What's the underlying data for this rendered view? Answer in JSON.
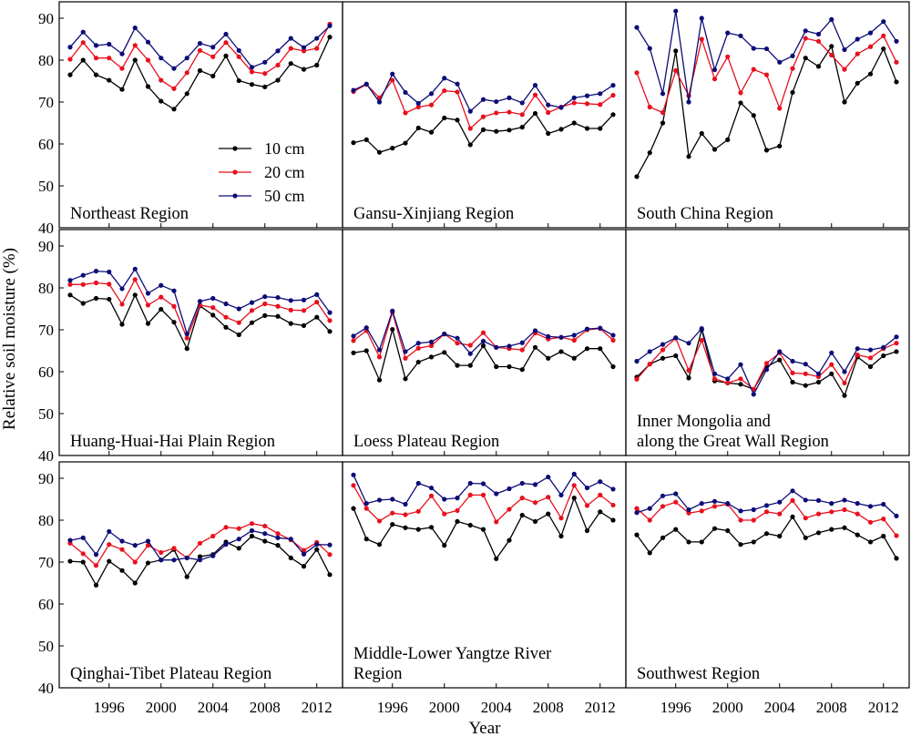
{
  "chart_data": {
    "type": "line",
    "xlabel": "Year",
    "ylabel": "Relative soil moisture (%)",
    "x": [
      1993,
      1994,
      1995,
      1996,
      1997,
      1998,
      1999,
      2000,
      2001,
      2002,
      2003,
      2004,
      2005,
      2006,
      2007,
      2008,
      2009,
      2010,
      2011,
      2012,
      2013
    ],
    "xticks": [
      1996,
      2000,
      2004,
      2008,
      2012
    ],
    "ylim": [
      40,
      95
    ],
    "yticks": [
      40,
      50,
      60,
      70,
      80,
      90
    ],
    "legend": {
      "placement": "inside top panel, Northeast Region",
      "entries": [
        "10 cm",
        "20 cm",
        "50 cm"
      ]
    },
    "series_colors": {
      "10 cm": "#000000",
      "20 cm": "#e8101e",
      "50 cm": "#0c0c78"
    },
    "panels": [
      {
        "title": [
          "Northeast Region"
        ],
        "series": [
          {
            "name": "10 cm",
            "values": [
              76.5,
              80,
              76.5,
              75.2,
              73,
              80,
              73.7,
              70.2,
              68.3,
              72,
              77.5,
              76.2,
              81,
              75.1,
              74.2,
              73.6,
              75.2,
              79.2,
              77.8,
              78.8,
              85.5
            ]
          },
          {
            "name": "20 cm",
            "values": [
              80.2,
              84.2,
              80.5,
              80.5,
              78,
              83.5,
              80,
              75.2,
              73.2,
              77,
              82.3,
              80.8,
              84.2,
              80.8,
              77.2,
              76.8,
              78.8,
              82.8,
              82.2,
              82.8,
              88.6
            ]
          },
          {
            "name": "50 cm",
            "values": [
              83.1,
              86.7,
              83.5,
              83.8,
              81.5,
              87.7,
              84.3,
              80.5,
              78,
              80.5,
              84,
              83.1,
              86.2,
              82.3,
              78.3,
              79.5,
              82.2,
              85.2,
              83,
              85.2,
              88.2
            ]
          }
        ]
      },
      {
        "title": [
          "Gansu-Xinjiang Region"
        ],
        "series": [
          {
            "name": "10 cm",
            "values": [
              60.3,
              61,
              58,
              59,
              60.2,
              63.8,
              62.8,
              66.2,
              65.7,
              59.8,
              63.4,
              63,
              63.3,
              64,
              67.3,
              62.5,
              63.5,
              65,
              63.7,
              63.7,
              67
            ]
          },
          {
            "name": "20 cm",
            "values": [
              72.5,
              74.2,
              71,
              75.2,
              67.4,
              68.8,
              69.3,
              72.7,
              72.4,
              63.7,
              66.5,
              67.4,
              67.6,
              67,
              71.7,
              67.5,
              68.8,
              69.8,
              69.6,
              69.4,
              71.6
            ]
          },
          {
            "name": "50 cm",
            "values": [
              72.8,
              74.3,
              70,
              76.7,
              72.3,
              69.7,
              72,
              75.7,
              74.3,
              67.8,
              70.6,
              70.1,
              71,
              69.8,
              74,
              69.3,
              68.7,
              71,
              71.5,
              72,
              74
            ]
          }
        ]
      },
      {
        "title": [
          "South China Region"
        ],
        "series": [
          {
            "name": "10 cm",
            "values": [
              52.2,
              57.9,
              65,
              82.2,
              57,
              62.5,
              58.7,
              61,
              69.8,
              66.8,
              58.5,
              59.5,
              72.3,
              80.5,
              78.5,
              83.3,
              70,
              74.5,
              76.7,
              82.7,
              74.8
            ]
          },
          {
            "name": "20 cm",
            "values": [
              77,
              68.8,
              67.5,
              77.5,
              71.5,
              85,
              75.5,
              80.8,
              72.2,
              77.8,
              76.5,
              68.5,
              78,
              85.2,
              84.5,
              81.2,
              77.8,
              81.5,
              83.2,
              85.8,
              79.5
            ]
          },
          {
            "name": "50 cm",
            "values": [
              87.8,
              82.8,
              72,
              91.7,
              70,
              90,
              77.7,
              86.5,
              85.8,
              82.8,
              82.7,
              79.5,
              81,
              87,
              86.2,
              89.7,
              82.5,
              85,
              86.5,
              89.2,
              84.5
            ]
          }
        ]
      },
      {
        "title": [
          "Huang-Huai-Hai Plain Region"
        ],
        "series": [
          {
            "name": "10 cm",
            "values": [
              78.3,
              76.3,
              77.5,
              77.3,
              71.3,
              78.3,
              71.5,
              74.9,
              71.8,
              65.5,
              75.7,
              73.5,
              70.6,
              68.8,
              71.7,
              73.4,
              73.2,
              71.5,
              71,
              73,
              69.6
            ]
          },
          {
            "name": "20 cm",
            "values": [
              80.8,
              80.8,
              81.2,
              80.9,
              76.1,
              82,
              75.9,
              77.8,
              75.6,
              68,
              75.9,
              75.3,
              73,
              71.7,
              74.6,
              76.2,
              75.6,
              74.7,
              74.6,
              76.6,
              72.2
            ]
          },
          {
            "name": "50 cm",
            "values": [
              81.8,
              83,
              84,
              83.8,
              79.8,
              84.5,
              78.7,
              80.6,
              79.3,
              69,
              76.8,
              77.5,
              76.2,
              75,
              76.5,
              77.9,
              77.7,
              77,
              77.1,
              78.4,
              74.1
            ]
          }
        ]
      },
      {
        "title": [
          "Loess Plateau Region"
        ],
        "series": [
          {
            "name": "10 cm",
            "values": [
              64.5,
              65,
              58,
              70.1,
              58.3,
              62.3,
              63.5,
              64.6,
              61.5,
              61.5,
              66.2,
              61.2,
              61.2,
              60.5,
              65.8,
              63.2,
              64.8,
              63.2,
              65.5,
              65.5,
              61.2
            ]
          },
          {
            "name": "20 cm",
            "values": [
              67.4,
              69.8,
              63.5,
              74.2,
              63.2,
              65.6,
              66.2,
              69,
              66.8,
              66.3,
              69.3,
              65.8,
              65.5,
              65.2,
              69.2,
              67.8,
              68.2,
              67.5,
              70,
              70.3,
              67.5
            ]
          },
          {
            "name": "50 cm",
            "values": [
              68.5,
              70.5,
              65.2,
              74.5,
              64.8,
              66.8,
              67.1,
              69,
              68,
              64.3,
              67.3,
              65.8,
              66.1,
              66.9,
              69.8,
              68.4,
              68.2,
              68.7,
              70.2,
              70.4,
              68.7
            ]
          }
        ]
      },
      {
        "title": [
          "Inner Mongolia and",
          "along the Great Wall Region"
        ],
        "series": [
          {
            "name": "10 cm",
            "values": [
              58.7,
              61.8,
              63.2,
              63.8,
              58.5,
              70,
              57.8,
              57.3,
              57,
              55.8,
              61.2,
              62.8,
              57.5,
              56.7,
              57.5,
              59.5,
              54.3,
              63.5,
              61.2,
              63.8,
              64.8
            ]
          },
          {
            "name": "20 cm",
            "values": [
              58.2,
              61.8,
              65.2,
              68,
              60.3,
              67.5,
              58.3,
              57.3,
              58.3,
              55.8,
              62,
              64.5,
              59.7,
              59.5,
              58.8,
              61.7,
              57.3,
              64,
              63.3,
              65.5,
              66.8
            ]
          },
          {
            "name": "50 cm",
            "values": [
              62.5,
              64.8,
              66.5,
              68.1,
              66.8,
              70.3,
              59.5,
              58.3,
              61.7,
              54.6,
              60.5,
              64.8,
              62.5,
              61.8,
              59.5,
              64.5,
              60,
              65.5,
              65.2,
              65.8,
              68.3
            ]
          }
        ]
      },
      {
        "title": [
          "Qinghai-Tibet Plateau Region"
        ],
        "series": [
          {
            "name": "10 cm",
            "values": [
              70.2,
              70,
              64.5,
              70.2,
              68,
              65,
              69.8,
              70.5,
              73,
              66.5,
              71.3,
              71.8,
              74.8,
              73.3,
              76.2,
              75,
              74,
              71,
              69,
              73,
              67
            ]
          },
          {
            "name": "20 cm",
            "values": [
              74.5,
              72,
              69.2,
              74.2,
              73,
              70,
              74,
              72.3,
              73.3,
              71,
              74.5,
              76.2,
              78.3,
              78,
              79.2,
              78.6,
              76.8,
              75.3,
              72.8,
              74.7,
              71.8
            ]
          },
          {
            "name": "50 cm",
            "values": [
              75.2,
              75.8,
              71.8,
              77.3,
              75,
              74,
              75,
              70.5,
              70.5,
              71,
              70.5,
              71.5,
              74.2,
              75.5,
              77.5,
              76.8,
              75.8,
              75.5,
              71.9,
              74.2,
              74.1
            ]
          }
        ]
      },
      {
        "title": [
          "Middle-Lower Yangtze River",
          "Region"
        ],
        "series": [
          {
            "name": "10 cm",
            "values": [
              82.8,
              75.5,
              74.2,
              79,
              78.2,
              77.8,
              78.3,
              74,
              79.7,
              78.8,
              77.8,
              70.8,
              75.2,
              81.2,
              79.7,
              81.5,
              76.2,
              85.3,
              77.5,
              82,
              80
            ]
          },
          {
            "name": "20 cm",
            "values": [
              88.3,
              82.8,
              79.8,
              81.7,
              81.3,
              82.1,
              85.8,
              81.5,
              82.3,
              86,
              86,
              79.6,
              82.6,
              85.3,
              84.2,
              85.5,
              80.5,
              88.3,
              83.5,
              86,
              83.6
            ]
          },
          {
            "name": "50 cm",
            "values": [
              90.8,
              84,
              84.8,
              85,
              83.8,
              88.8,
              87.7,
              85,
              85.3,
              88.8,
              88.7,
              86.3,
              87.5,
              88.8,
              88.5,
              90.3,
              86,
              91,
              87.7,
              89.2,
              87.4
            ]
          }
        ]
      },
      {
        "title": [
          "Southwest Region"
        ],
        "series": [
          {
            "name": "10 cm",
            "values": [
              76.5,
              72.2,
              75.8,
              77.8,
              74.8,
              74.8,
              78,
              77.5,
              74.2,
              74.8,
              76.8,
              76.2,
              80.8,
              75.8,
              77,
              77.8,
              78.2,
              76.5,
              74.8,
              76.2,
              70.9
            ]
          },
          {
            "name": "20 cm",
            "values": [
              82.8,
              80,
              83.3,
              84.3,
              81.7,
              82.2,
              83.3,
              83.8,
              80,
              80,
              82,
              81.5,
              84.7,
              80.5,
              81.5,
              82,
              82.5,
              81.5,
              79.5,
              80.3,
              76.3
            ]
          },
          {
            "name": "50 cm",
            "values": [
              81.8,
              82.8,
              85.8,
              86.3,
              82.5,
              84,
              84.5,
              84,
              82.2,
              82.5,
              83.5,
              84.3,
              87,
              84.8,
              84.7,
              84,
              84.8,
              84,
              83.3,
              83.8,
              81
            ]
          }
        ]
      }
    ]
  }
}
